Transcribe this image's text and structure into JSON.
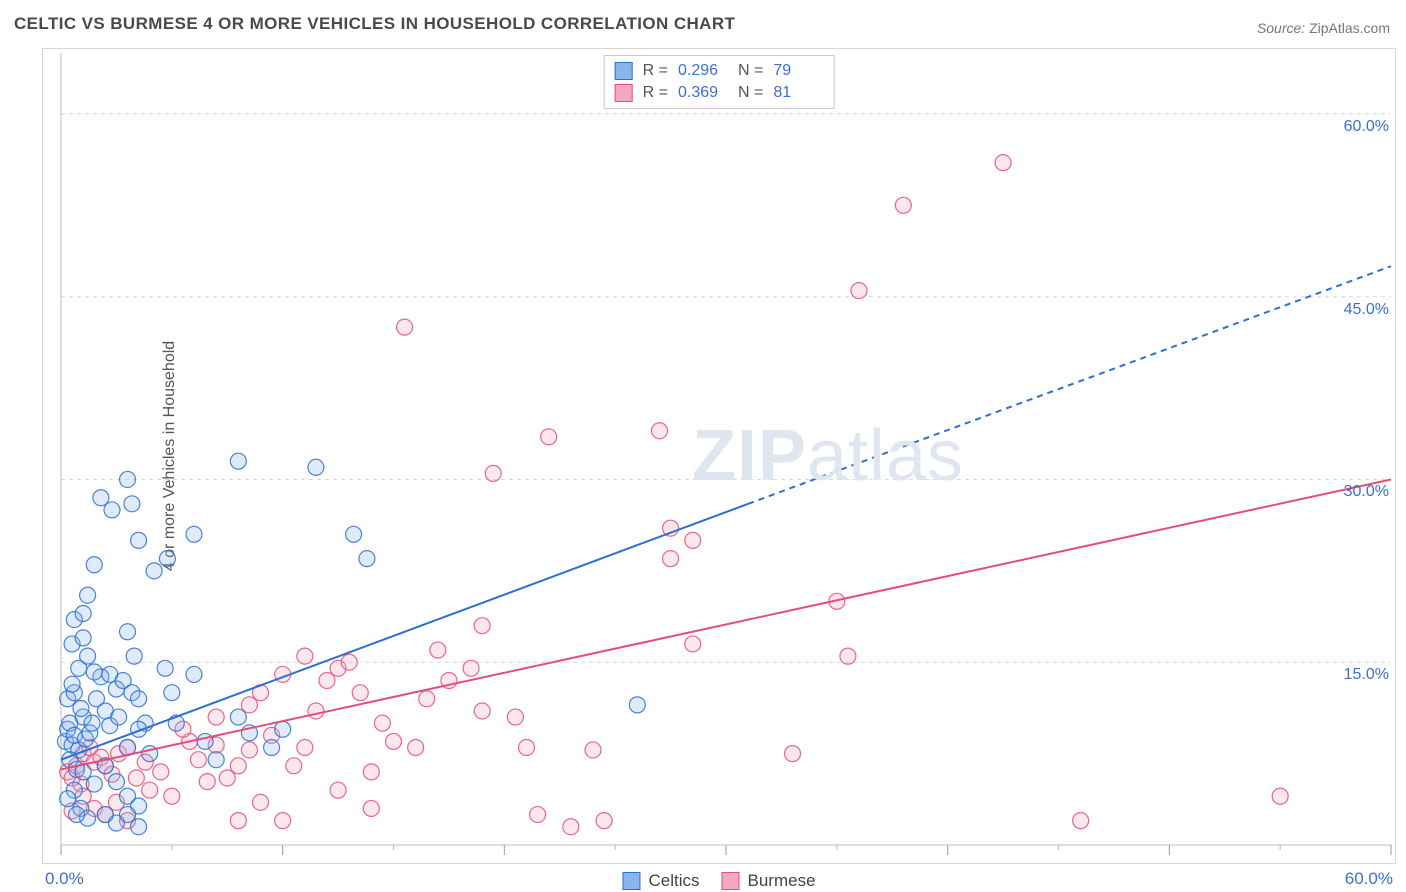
{
  "title": "CELTIC VS BURMESE 4 OR MORE VEHICLES IN HOUSEHOLD CORRELATION CHART",
  "source_label": "Source:",
  "source_value": "ZipAtlas.com",
  "ylabel": "4 or more Vehicles in Household",
  "watermark_a": "ZIP",
  "watermark_b": "atlas",
  "chart": {
    "type": "scatter+regression",
    "background_color": "#ffffff",
    "plot_border_color": "#d8d8d8",
    "grid_color": "#d8d8d8",
    "grid_dash": "4,4",
    "xlim": [
      0,
      60
    ],
    "ylim": [
      0,
      65
    ],
    "x_ticks_major": [
      0,
      10,
      20,
      30,
      40,
      50,
      60
    ],
    "x_ticks_minor": [
      5,
      15,
      25,
      35,
      45,
      55
    ],
    "x_min_label": "0.0%",
    "x_max_label": "60.0%",
    "y_gridlines": [
      15,
      30,
      45,
      60
    ],
    "y_labels": {
      "15": "15.0%",
      "30": "30.0%",
      "45": "45.0%",
      "60": "60.0%"
    },
    "y_label_color": "#3b6fd6",
    "marker_radius": 8,
    "marker_stroke_width": 1.2,
    "marker_fill_opacity": 0.28,
    "line_width": 2.0,
    "line_dash_extrapolate": "6,5",
    "series": {
      "celtics": {
        "label": "Celtics",
        "color_stroke": "#2b6fd1",
        "color_fill": "#8bb4ec",
        "r_value": "0.296",
        "n_value": "79",
        "regression": {
          "x1": 0,
          "y1": 7.0,
          "x2": 31,
          "y2": 28.0,
          "x2_ext": 60,
          "y2_ext": 47.5
        },
        "points": [
          [
            0.2,
            8.5
          ],
          [
            0.3,
            9.5
          ],
          [
            0.4,
            10.0
          ],
          [
            0.5,
            8.2
          ],
          [
            0.6,
            9.0
          ],
          [
            0.8,
            7.8
          ],
          [
            1.0,
            10.5
          ],
          [
            0.9,
            11.2
          ],
          [
            0.3,
            12.0
          ],
          [
            0.6,
            12.5
          ],
          [
            0.5,
            13.2
          ],
          [
            0.4,
            7.0
          ],
          [
            0.7,
            6.2
          ],
          [
            1.1,
            8.7
          ],
          [
            1.3,
            9.2
          ],
          [
            1.4,
            10.0
          ],
          [
            1.6,
            12.0
          ],
          [
            1.8,
            13.8
          ],
          [
            2.0,
            11.0
          ],
          [
            2.2,
            9.8
          ],
          [
            0.8,
            14.5
          ],
          [
            0.5,
            16.5
          ],
          [
            1.0,
            17.0
          ],
          [
            1.2,
            15.5
          ],
          [
            1.5,
            14.2
          ],
          [
            2.5,
            12.8
          ],
          [
            1.0,
            6.0
          ],
          [
            1.5,
            5.0
          ],
          [
            2.0,
            6.5
          ],
          [
            2.5,
            5.2
          ],
          [
            3.0,
            4.0
          ],
          [
            3.5,
            3.2
          ],
          [
            0.6,
            4.5
          ],
          [
            0.3,
            3.8
          ],
          [
            0.9,
            3.0
          ],
          [
            1.2,
            2.2
          ],
          [
            0.7,
            2.5
          ],
          [
            2.2,
            14.0
          ],
          [
            2.8,
            13.5
          ],
          [
            3.2,
            12.5
          ],
          [
            0.6,
            18.5
          ],
          [
            2.6,
            10.5
          ],
          [
            3.8,
            10.0
          ],
          [
            4.7,
            14.5
          ],
          [
            5.2,
            10.0
          ],
          [
            3.0,
            8.0
          ],
          [
            3.5,
            9.5
          ],
          [
            4.0,
            7.5
          ],
          [
            2.0,
            2.5
          ],
          [
            2.5,
            1.8
          ],
          [
            3.0,
            2.5
          ],
          [
            3.5,
            1.5
          ],
          [
            1.2,
            20.5
          ],
          [
            1.0,
            19.0
          ],
          [
            4.2,
            22.5
          ],
          [
            1.5,
            23.0
          ],
          [
            2.3,
            27.5
          ],
          [
            1.8,
            28.5
          ],
          [
            3.0,
            30.0
          ],
          [
            3.2,
            28.0
          ],
          [
            3.5,
            25.0
          ],
          [
            4.8,
            23.5
          ],
          [
            6.0,
            25.5
          ],
          [
            8.0,
            31.5
          ],
          [
            11.5,
            31.0
          ],
          [
            13.2,
            25.5
          ],
          [
            13.8,
            23.5
          ],
          [
            5.0,
            12.5
          ],
          [
            6.0,
            14.0
          ],
          [
            8.0,
            10.5
          ],
          [
            8.5,
            9.2
          ],
          [
            9.5,
            8.0
          ],
          [
            10.0,
            9.5
          ],
          [
            6.5,
            8.5
          ],
          [
            7.0,
            7.0
          ],
          [
            3.0,
            17.5
          ],
          [
            3.3,
            15.5
          ],
          [
            26.0,
            11.5
          ],
          [
            3.5,
            12.0
          ]
        ]
      },
      "burmese": {
        "label": "Burmese",
        "color_stroke": "#e54d78",
        "color_fill": "#f4a9bf",
        "r_value": "0.369",
        "n_value": "81",
        "regression": {
          "x1": 0,
          "y1": 6.2,
          "x2": 60,
          "y2": 30.0
        },
        "points": [
          [
            0.3,
            6.0
          ],
          [
            0.5,
            5.5
          ],
          [
            0.7,
            6.5
          ],
          [
            0.9,
            5.0
          ],
          [
            1.0,
            7.5
          ],
          [
            1.3,
            8.0
          ],
          [
            1.5,
            6.8
          ],
          [
            1.8,
            7.2
          ],
          [
            2.0,
            6.5
          ],
          [
            2.3,
            5.8
          ],
          [
            2.6,
            7.5
          ],
          [
            3.0,
            8.0
          ],
          [
            3.4,
            5.5
          ],
          [
            3.8,
            6.8
          ],
          [
            4.0,
            4.5
          ],
          [
            4.5,
            6.0
          ],
          [
            5.0,
            4.0
          ],
          [
            5.8,
            8.5
          ],
          [
            6.2,
            7.0
          ],
          [
            6.6,
            5.2
          ],
          [
            1.0,
            4.0
          ],
          [
            1.5,
            3.0
          ],
          [
            2.0,
            2.5
          ],
          [
            2.5,
            3.5
          ],
          [
            3.0,
            2.0
          ],
          [
            0.5,
            2.8
          ],
          [
            7.0,
            8.2
          ],
          [
            7.5,
            5.5
          ],
          [
            8.0,
            6.5
          ],
          [
            8.5,
            7.8
          ],
          [
            9.5,
            9.0
          ],
          [
            10.5,
            6.5
          ],
          [
            11.0,
            8.0
          ],
          [
            11.5,
            11.0
          ],
          [
            12.0,
            13.5
          ],
          [
            12.5,
            14.5
          ],
          [
            13.5,
            12.5
          ],
          [
            14.5,
            10.0
          ],
          [
            15.0,
            8.5
          ],
          [
            16.5,
            12.0
          ],
          [
            17.5,
            13.5
          ],
          [
            18.5,
            14.5
          ],
          [
            19.0,
            11.0
          ],
          [
            20.5,
            10.5
          ],
          [
            21.0,
            8.0
          ],
          [
            21.5,
            2.5
          ],
          [
            23.0,
            1.5
          ],
          [
            24.0,
            7.8
          ],
          [
            24.5,
            2.0
          ],
          [
            19.0,
            18.0
          ],
          [
            17.0,
            16.0
          ],
          [
            11.0,
            15.5
          ],
          [
            13.0,
            15.0
          ],
          [
            10.0,
            14.0
          ],
          [
            9.0,
            12.5
          ],
          [
            9.0,
            3.5
          ],
          [
            10.0,
            2.0
          ],
          [
            12.5,
            4.5
          ],
          [
            14.0,
            3.0
          ],
          [
            8.0,
            2.0
          ],
          [
            8.5,
            11.5
          ],
          [
            19.5,
            30.5
          ],
          [
            22.0,
            33.5
          ],
          [
            27.0,
            34.0
          ],
          [
            27.5,
            23.5
          ],
          [
            27.5,
            26.0
          ],
          [
            28.5,
            16.5
          ],
          [
            33.0,
            7.5
          ],
          [
            35.0,
            20.0
          ],
          [
            35.5,
            15.5
          ],
          [
            36.0,
            45.5
          ],
          [
            38.0,
            52.5
          ],
          [
            42.5,
            56.0
          ],
          [
            46.0,
            2.0
          ],
          [
            55.0,
            4.0
          ],
          [
            15.5,
            42.5
          ],
          [
            28.5,
            25.0
          ],
          [
            5.5,
            9.5
          ],
          [
            7.0,
            10.5
          ],
          [
            14.0,
            6.0
          ],
          [
            16.0,
            8.0
          ]
        ]
      }
    }
  },
  "legend_top": {
    "r_label": "R =",
    "n_label": "N ="
  }
}
